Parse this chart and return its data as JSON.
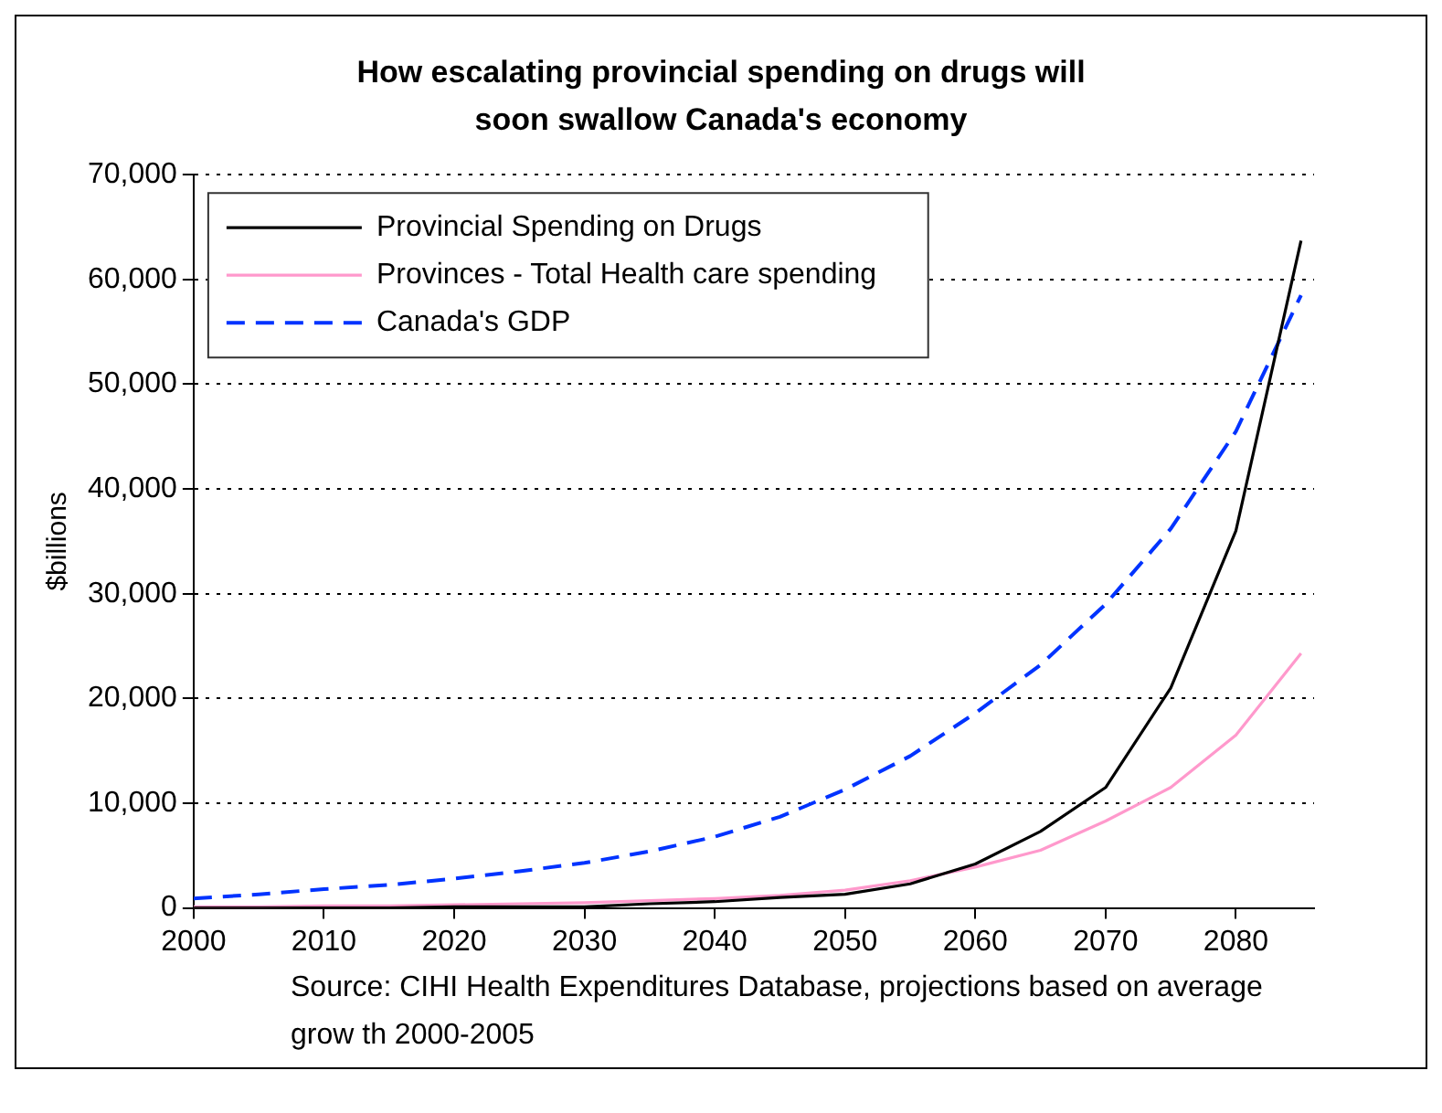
{
  "chart_data": {
    "type": "line",
    "title": "How escalating provincial spending on drugs will soon swallow Canada's economy",
    "ylabel": "$billions",
    "x": [
      2000,
      2005,
      2010,
      2015,
      2020,
      2025,
      2030,
      2035,
      2040,
      2045,
      2050,
      2055,
      2060,
      2065,
      2070,
      2075,
      2080,
      2085
    ],
    "series": [
      {
        "name": "Provincial Spending on Drugs",
        "color": "#000000",
        "line_style": "solid",
        "values": [
          0,
          0,
          0,
          0,
          100,
          100,
          100,
          400,
          600,
          1000,
          1300,
          2300,
          4200,
          7300,
          11500,
          21000,
          36000,
          63700
        ]
      },
      {
        "name": "Provinces - Total Health care spending",
        "color": "#ff99cc",
        "line_style": "solid",
        "values": [
          100,
          100,
          200,
          200,
          300,
          400,
          500,
          700,
          900,
          1200,
          1700,
          2600,
          3900,
          5500,
          8300,
          11500,
          16500,
          24300
        ]
      },
      {
        "name": "Canada's GDP",
        "color": "#0033ff",
        "line_style": "dashed",
        "values": [
          900,
          1300,
          1800,
          2200,
          2800,
          3500,
          4300,
          5400,
          6800,
          8700,
          11300,
          14500,
          18600,
          23200,
          29000,
          36200,
          45500,
          58500
        ]
      }
    ],
    "xlim": [
      2000,
      2086
    ],
    "xticks": [
      2000,
      2010,
      2020,
      2030,
      2040,
      2050,
      2060,
      2070,
      2080
    ],
    "ylim": [
      0,
      70000
    ],
    "yticks": [
      {
        "value": 0,
        "label": "0"
      },
      {
        "value": 10000,
        "label": "10,000"
      },
      {
        "value": 20000,
        "label": "20,000"
      },
      {
        "value": 30000,
        "label": "30,000"
      },
      {
        "value": 40000,
        "label": "40,000"
      },
      {
        "value": 50000,
        "label": "50,000"
      },
      {
        "value": 60000,
        "label": "60,000"
      },
      {
        "value": 70000,
        "label": "70,000"
      }
    ],
    "grid": "y",
    "legend": "top left",
    "marker": "none",
    "annotations": [
      "Source: CIHI Health Expenditures Database, projections based on average grow th 2000-2005"
    ]
  }
}
